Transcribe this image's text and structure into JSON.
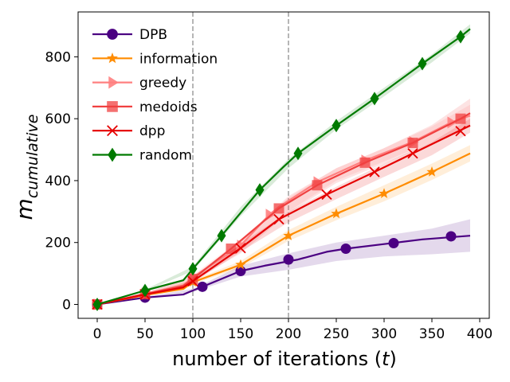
{
  "chart_data": {
    "type": "line",
    "xlabel_main": "number of iterations (",
    "xlabel_var": "t",
    "xlabel_end": ")",
    "ylabel_main": "m",
    "ylabel_sub": "cumulative",
    "xlim": [
      -20,
      410
    ],
    "ylim": [
      -45,
      945
    ],
    "xticks": [
      0,
      50,
      100,
      150,
      200,
      250,
      300,
      350,
      400
    ],
    "yticks": [
      0,
      200,
      400,
      600,
      800
    ],
    "vlines": [
      100,
      200
    ],
    "legend_position": "top-left",
    "series": [
      {
        "name": "DPB",
        "color": "#4b0082",
        "marker": "circle",
        "line": [
          [
            0,
            0
          ],
          [
            50,
            22
          ],
          [
            90,
            32
          ],
          [
            100,
            45
          ],
          [
            110,
            57
          ],
          [
            150,
            108
          ],
          [
            175,
            125
          ],
          [
            210,
            145
          ],
          [
            240,
            170
          ],
          [
            260,
            180
          ],
          [
            300,
            195
          ],
          [
            340,
            210
          ],
          [
            390,
            222
          ]
        ],
        "band_upper": [
          [
            0,
            0
          ],
          [
            50,
            25
          ],
          [
            100,
            50
          ],
          [
            150,
            125
          ],
          [
            200,
            165
          ],
          [
            250,
            200
          ],
          [
            300,
            222
          ],
          [
            350,
            245
          ],
          [
            390,
            275
          ]
        ],
        "band_lower": [
          [
            0,
            0
          ],
          [
            50,
            20
          ],
          [
            100,
            40
          ],
          [
            150,
            90
          ],
          [
            200,
            112
          ],
          [
            250,
            140
          ],
          [
            300,
            155
          ],
          [
            350,
            162
          ],
          [
            390,
            170
          ]
        ],
        "markers": [
          [
            0,
            0
          ],
          [
            50,
            22
          ],
          [
            110,
            57
          ],
          [
            150,
            108
          ],
          [
            200,
            145
          ],
          [
            260,
            180
          ],
          [
            310,
            198
          ],
          [
            370,
            220
          ]
        ]
      },
      {
        "name": "information",
        "color": "#ff8c00",
        "marker": "star",
        "line": [
          [
            0,
            0
          ],
          [
            50,
            30
          ],
          [
            90,
            50
          ],
          [
            100,
            72
          ],
          [
            150,
            128
          ],
          [
            200,
            222
          ],
          [
            250,
            293
          ],
          [
            300,
            358
          ],
          [
            350,
            428
          ],
          [
            390,
            488
          ]
        ],
        "band_upper": [
          [
            0,
            0
          ],
          [
            50,
            32
          ],
          [
            100,
            78
          ],
          [
            150,
            140
          ],
          [
            200,
            240
          ],
          [
            250,
            315
          ],
          [
            300,
            385
          ],
          [
            350,
            455
          ],
          [
            390,
            515
          ]
        ],
        "band_lower": [
          [
            0,
            0
          ],
          [
            50,
            28
          ],
          [
            100,
            66
          ],
          [
            150,
            118
          ],
          [
            200,
            205
          ],
          [
            250,
            272
          ],
          [
            300,
            333
          ],
          [
            350,
            402
          ],
          [
            390,
            462
          ]
        ],
        "markers": [
          [
            0,
            0
          ],
          [
            50,
            30
          ],
          [
            100,
            72
          ],
          [
            150,
            128
          ],
          [
            200,
            222
          ],
          [
            250,
            293
          ],
          [
            300,
            358
          ],
          [
            350,
            428
          ]
        ]
      },
      {
        "name": "greedy",
        "color": "#ff8080",
        "marker": "triangle-right",
        "line": [
          [
            0,
            0
          ],
          [
            50,
            35
          ],
          [
            90,
            62
          ],
          [
            100,
            88
          ],
          [
            150,
            190
          ],
          [
            180,
            290
          ],
          [
            190,
            315
          ],
          [
            230,
            395
          ],
          [
            280,
            465
          ],
          [
            330,
            525
          ],
          [
            370,
            588
          ],
          [
            390,
            610
          ]
        ],
        "band_upper": [
          [
            0,
            0
          ],
          [
            50,
            38
          ],
          [
            100,
            95
          ],
          [
            150,
            210
          ],
          [
            200,
            345
          ],
          [
            250,
            440
          ],
          [
            300,
            505
          ],
          [
            350,
            575
          ],
          [
            390,
            645
          ]
        ],
        "band_lower": [
          [
            0,
            0
          ],
          [
            50,
            32
          ],
          [
            100,
            82
          ],
          [
            150,
            175
          ],
          [
            200,
            300
          ],
          [
            250,
            400
          ],
          [
            300,
            462
          ],
          [
            350,
            525
          ],
          [
            390,
            575
          ]
        ],
        "markers": [
          [
            0,
            0
          ],
          [
            50,
            35
          ],
          [
            100,
            88
          ],
          [
            150,
            190
          ],
          [
            180,
            290
          ],
          [
            230,
            395
          ],
          [
            280,
            465
          ],
          [
            330,
            525
          ],
          [
            370,
            588
          ]
        ]
      },
      {
        "name": "medoids",
        "color": "#f04040",
        "marker": "square",
        "line": [
          [
            0,
            0
          ],
          [
            50,
            33
          ],
          [
            90,
            60
          ],
          [
            100,
            82
          ],
          [
            140,
            180
          ],
          [
            190,
            310
          ],
          [
            230,
            385
          ],
          [
            280,
            458
          ],
          [
            330,
            522
          ],
          [
            380,
            600
          ],
          [
            390,
            618
          ]
        ],
        "band_upper": [
          [
            0,
            0
          ],
          [
            50,
            36
          ],
          [
            100,
            90
          ],
          [
            150,
            205
          ],
          [
            200,
            350
          ],
          [
            250,
            440
          ],
          [
            300,
            505
          ],
          [
            350,
            580
          ],
          [
            390,
            665
          ]
        ],
        "band_lower": [
          [
            0,
            0
          ],
          [
            50,
            30
          ],
          [
            100,
            75
          ],
          [
            150,
            165
          ],
          [
            200,
            295
          ],
          [
            250,
            392
          ],
          [
            300,
            455
          ],
          [
            350,
            520
          ],
          [
            390,
            578
          ]
        ],
        "markers": [
          [
            0,
            0
          ],
          [
            50,
            33
          ],
          [
            100,
            82
          ],
          [
            140,
            180
          ],
          [
            190,
            310
          ],
          [
            230,
            385
          ],
          [
            280,
            458
          ],
          [
            330,
            522
          ],
          [
            380,
            600
          ]
        ]
      },
      {
        "name": "dpp",
        "color": "#e50000",
        "marker": "x",
        "line": [
          [
            0,
            0
          ],
          [
            50,
            32
          ],
          [
            90,
            55
          ],
          [
            100,
            75
          ],
          [
            150,
            182
          ],
          [
            190,
            275
          ],
          [
            240,
            355
          ],
          [
            290,
            428
          ],
          [
            330,
            488
          ],
          [
            390,
            578
          ]
        ],
        "band_upper": [
          [
            0,
            0
          ],
          [
            50,
            34
          ],
          [
            100,
            80
          ],
          [
            150,
            195
          ],
          [
            200,
            300
          ],
          [
            250,
            380
          ],
          [
            300,
            455
          ],
          [
            350,
            525
          ],
          [
            390,
            600
          ]
        ],
        "band_lower": [
          [
            0,
            0
          ],
          [
            50,
            30
          ],
          [
            100,
            70
          ],
          [
            150,
            170
          ],
          [
            200,
            265
          ],
          [
            250,
            340
          ],
          [
            300,
            412
          ],
          [
            350,
            482
          ],
          [
            390,
            555
          ]
        ],
        "markers": [
          [
            0,
            0
          ],
          [
            50,
            32
          ],
          [
            100,
            75
          ],
          [
            150,
            182
          ],
          [
            190,
            275
          ],
          [
            240,
            355
          ],
          [
            290,
            428
          ],
          [
            330,
            488
          ],
          [
            380,
            560
          ]
        ]
      },
      {
        "name": "random",
        "color": "#007a00",
        "marker": "diamond",
        "line": [
          [
            0,
            0
          ],
          [
            50,
            45
          ],
          [
            90,
            78
          ],
          [
            100,
            115
          ],
          [
            130,
            222
          ],
          [
            170,
            370
          ],
          [
            195,
            445
          ],
          [
            210,
            488
          ],
          [
            250,
            578
          ],
          [
            290,
            665
          ],
          [
            340,
            778
          ],
          [
            380,
            865
          ],
          [
            390,
            890
          ]
        ],
        "band_upper": [
          [
            0,
            0
          ],
          [
            50,
            48
          ],
          [
            100,
            122
          ],
          [
            150,
            315
          ],
          [
            200,
            470
          ],
          [
            250,
            592
          ],
          [
            300,
            700
          ],
          [
            350,
            808
          ],
          [
            390,
            905
          ]
        ],
        "band_lower": [
          [
            0,
            0
          ],
          [
            50,
            42
          ],
          [
            100,
            108
          ],
          [
            150,
            285
          ],
          [
            200,
            440
          ],
          [
            250,
            565
          ],
          [
            300,
            672
          ],
          [
            350,
            782
          ],
          [
            390,
            876
          ]
        ],
        "markers": [
          [
            0,
            0
          ],
          [
            50,
            45
          ],
          [
            100,
            115
          ],
          [
            130,
            222
          ],
          [
            170,
            370
          ],
          [
            210,
            488
          ],
          [
            250,
            578
          ],
          [
            290,
            665
          ],
          [
            340,
            778
          ],
          [
            380,
            865
          ]
        ]
      }
    ]
  }
}
